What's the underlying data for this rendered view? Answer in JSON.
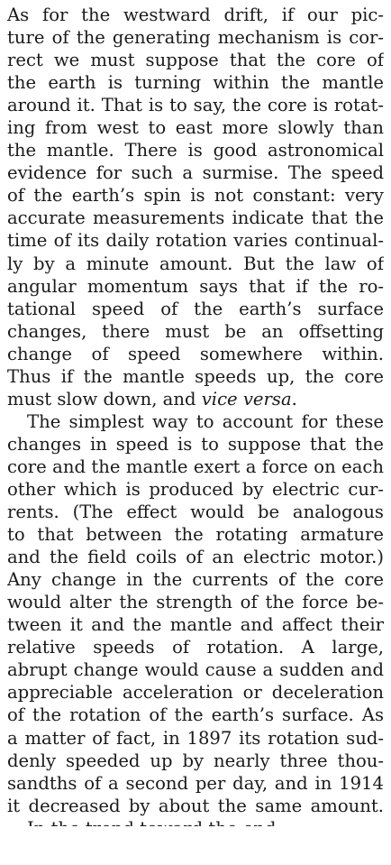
{
  "paragraph_1": {
    "lines": [
      "As for the westward drift, if our pic-",
      "ture of the generating mechanism is cor-",
      "rect we must suppose that the core of",
      "the earth is turning within the mantle",
      "around it. That is to say, the core is rotat-",
      "ing from west to east more slowly than",
      "the mantle. There is good astronomical",
      "evidence for such a surmise. The speed",
      "of the earth’s spin is not constant: very",
      "accurate measurements indicate that the",
      "time of its daily rotation varies continual-",
      "ly by a minute amount. But the law of",
      "angular momentum says that if the ro-",
      "tational speed of the earth’s surface",
      "changes, there must be an offsetting",
      "change of speed somewhere within.",
      "Thus if the mantle speeds up, the core"
    ],
    "last_line_prefix": "must slow down, and ",
    "last_line_italic": "vice versa",
    "last_line_suffix": "."
  },
  "paragraph_2": {
    "lines": [
      "The simplest way to account for these",
      "changes in speed is to suppose that the",
      "core and the mantle exert a force on each",
      "other which is produced by electric cur-",
      "rents. (The effect would be analogous",
      "to that between the rotating armature",
      "and the field coils of an electric motor.)",
      "Any change in the currents of the core",
      "would alter the strength of the force be-",
      "tween it and the mantle and affect their",
      "relative speeds of rotation. A large,",
      "abrupt change would cause a sudden and",
      "appreciable acceleration or deceleration",
      "of the rotation of the earth’s surface. As",
      "a matter of fact, in 1897 its rotation sud-",
      "denly speeded up by nearly three thou-",
      "sandths of a second per day, and in 1914",
      "it decreased by about the same amount."
    ]
  },
  "cutoff_line": "In the trend toward the end."
}
